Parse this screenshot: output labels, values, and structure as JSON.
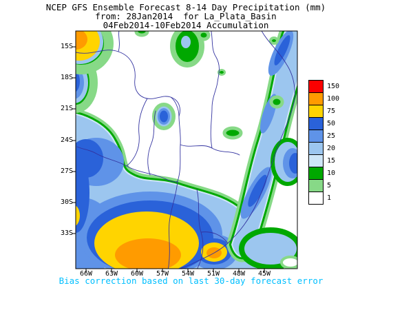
{
  "header": {
    "line1": "NCEP GFS Ensemble Forecast 8-14 Day Precipitation (mm)",
    "line2": "from: 28Jan2014  for La_Plata_Basin",
    "line3": "04Feb2014-10Feb2014 Accumulation"
  },
  "footer": {
    "caption": "Bias correction based on last 30-day forecast error"
  },
  "axes": {
    "lat": [
      "15S",
      "18S",
      "21S",
      "24S",
      "27S",
      "30S",
      "33S"
    ],
    "lon": [
      "66W",
      "63W",
      "60W",
      "57W",
      "54W",
      "51W",
      "48W",
      "45W"
    ]
  },
  "legend": {
    "levels": [
      "150",
      "100",
      "75",
      "50",
      "25",
      "20",
      "15",
      "10",
      "5",
      "1"
    ],
    "color_keys": [
      "c150",
      "c100",
      "c75",
      "c50",
      "c25",
      "c20",
      "c15",
      "c10",
      "c5",
      "c1"
    ]
  },
  "palette": {
    "c1": "#ffffff",
    "c5": "#87d987",
    "c10": "#00a800",
    "c15": "#cfe6f7",
    "c20": "#9cc6ef",
    "c25": "#5f93e8",
    "c50": "#2a62d9",
    "c75": "#ffd400",
    "c100": "#ff9b00",
    "c150": "#fb0000",
    "map_line": "#3333a0",
    "caption": "#00bfff"
  },
  "chart_data": {
    "type": "heatmap",
    "title": "NCEP GFS Ensemble Forecast 8-14 Day Precipitation (mm)",
    "subtitle": "from: 28Jan2014 for La_Plata_Basin - 04Feb2014-10Feb2014 Accumulation",
    "variable": "7-day accumulated precipitation forecast (days 8-14)",
    "units": "mm",
    "region": "La Plata Basin, South America",
    "x_tick_labels": [
      "66W",
      "63W",
      "60W",
      "57W",
      "54W",
      "51W",
      "48W",
      "45W"
    ],
    "y_tick_labels": [
      "15S",
      "18S",
      "21S",
      "24S",
      "27S",
      "30S",
      "33S"
    ],
    "contour_levels_mm": [
      1,
      5,
      10,
      15,
      20,
      25,
      50,
      75,
      100,
      150
    ],
    "legend_position": "right",
    "features": [
      {
        "location": "northwest corner near 14S 66W (Andes)",
        "value_mm": "75-150 maximum"
      },
      {
        "location": "south-central region ~30-35S, 55-62W (central Argentina into Uruguay)",
        "value_mm": "75-100+ broad maximum"
      },
      {
        "location": "secondary 100 mm core near 34S 53W",
        "value_mm": "100"
      },
      {
        "location": "broad arc west and south of Paraguay and along SE Brazil coast",
        "value_mm": "25-75"
      },
      {
        "location": "isolated maximum near 21.5S 57.5W",
        "value_mm": "50"
      },
      {
        "location": "central Paraguay / northern interior dry pocket",
        "value_mm": "0-1"
      },
      {
        "location": "scattered light precip spots north and northeast (~15-21S)",
        "value_mm": "1-15"
      }
    ],
    "note": "Bias correction based on last 30-day forecast error"
  }
}
